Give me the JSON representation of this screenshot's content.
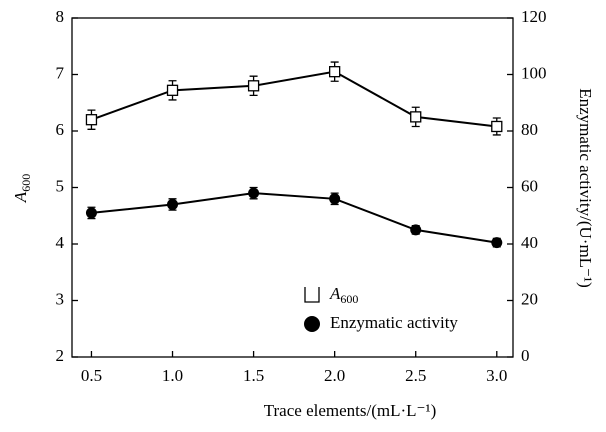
{
  "chart_data": {
    "type": "line",
    "xlabel": "Trace elements/(mL·L⁻¹)",
    "ylabel": "A600",
    "y2label": "Enzymatic activity/(U·mL⁻¹)",
    "x": [
      0.5,
      1.0,
      1.5,
      2.0,
      2.5,
      3.0
    ],
    "xlim": [
      0.38,
      3.1
    ],
    "xticks": [
      0.5,
      {
        "value": 1,
        "label": "1.0"
      },
      1.5,
      {
        "value": 2,
        "label": "2.0"
      },
      2.5,
      {
        "value": 3,
        "label": "3.0"
      }
    ],
    "ylim": [
      2,
      8
    ],
    "yticks": [
      2,
      3,
      4,
      5,
      6,
      7,
      8
    ],
    "y2lim": [
      0,
      120
    ],
    "y2ticks": [
      0,
      20,
      40,
      60,
      80,
      100,
      120
    ],
    "legend": "lower center",
    "series": [
      {
        "name": "A600",
        "marker": "open-square",
        "color": "#000000",
        "values": [
          6.2,
          6.72,
          6.8,
          7.05,
          6.25,
          6.08
        ],
        "errors": [
          0.17,
          0.17,
          0.17,
          0.17,
          0.17,
          0.15
        ]
      },
      {
        "name": "Enzymatic activity",
        "marker": "filled-circle",
        "color": "#000000",
        "axis": "y2",
        "values": [
          51,
          54,
          58,
          56,
          45,
          40.5
        ],
        "errors": [
          2,
          2,
          2,
          2,
          1.5,
          1.5
        ]
      }
    ]
  }
}
